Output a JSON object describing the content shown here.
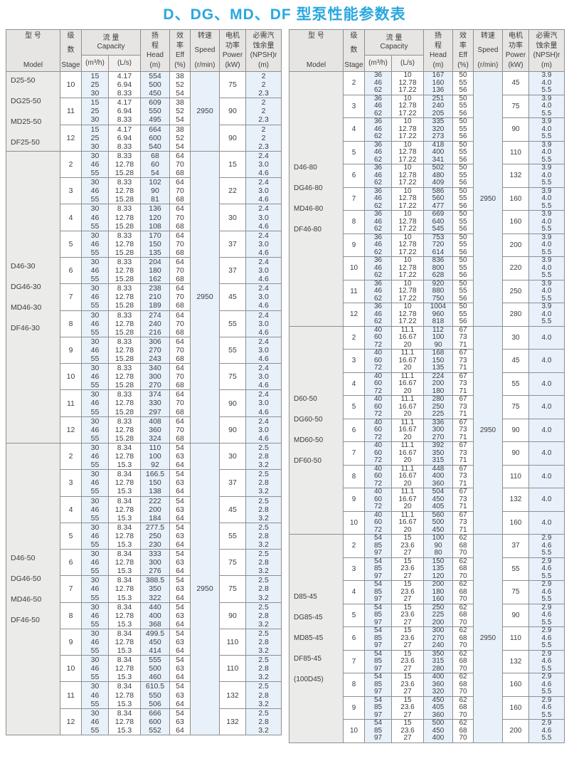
{
  "title": "D、DG、MD、DF 型泵性能参数表",
  "columns": {
    "model": {
      "lines": [
        "型  号",
        "Model"
      ]
    },
    "stage": {
      "lines": [
        "级",
        "数",
        "Stage"
      ]
    },
    "capacity": {
      "lines": [
        "流  量",
        "Capacity"
      ],
      "unit_m3h": "(m³/h)",
      "unit_ls": "(L/s)"
    },
    "head": {
      "lines": [
        "扬",
        "程",
        "Head",
        "(m)"
      ]
    },
    "eff": {
      "lines": [
        "效",
        "率",
        "Eff",
        "(%)"
      ]
    },
    "speed": {
      "lines": [
        "转速",
        "Speed",
        "(r/min)"
      ]
    },
    "power": {
      "lines": [
        "电机",
        "功率",
        "Power",
        "(kW)"
      ]
    },
    "npsh": {
      "lines": [
        "必需汽",
        "蚀余量",
        "(NPSH)r",
        "(m)"
      ]
    }
  },
  "tables": {
    "left": {
      "blocks": [
        {
          "models": [
            "D25-50",
            "DG25-50",
            "MD25-50",
            "DF25-50"
          ],
          "speed": "2950",
          "m3h": [
            "15",
            "25",
            "30"
          ],
          "ls": [
            "4.17",
            "6.94",
            "8.33"
          ],
          "eff": [
            "38",
            "52",
            "54"
          ],
          "npsh": [
            "2",
            "2",
            "2.3"
          ],
          "rows": [
            {
              "stage": "10",
              "head": [
                "554",
                "500",
                "450"
              ],
              "power": "75"
            },
            {
              "stage": "11",
              "head": [
                "609",
                "550",
                "495"
              ],
              "power": "90"
            },
            {
              "stage": "12",
              "head": [
                "664",
                "600",
                "540"
              ],
              "power": "90"
            }
          ]
        },
        {
          "models": [
            "D46-30",
            "DG46-30",
            "MD46-30",
            "DF46-30"
          ],
          "speed": "2950",
          "m3h": [
            "30",
            "46",
            "55"
          ],
          "ls": [
            "8.33",
            "12.78",
            "15.28"
          ],
          "eff": [
            "64",
            "70",
            "68"
          ],
          "npsh": [
            "2.4",
            "3.0",
            "4.6"
          ],
          "rows": [
            {
              "stage": "2",
              "head": [
                "68",
                "60",
                "54"
              ],
              "power": "15"
            },
            {
              "stage": "3",
              "head": [
                "102",
                "90",
                "81"
              ],
              "power": "22"
            },
            {
              "stage": "4",
              "head": [
                "136",
                "120",
                "108"
              ],
              "power": "30"
            },
            {
              "stage": "5",
              "head": [
                "170",
                "150",
                "135"
              ],
              "power": "37"
            },
            {
              "stage": "6",
              "head": [
                "204",
                "180",
                "162"
              ],
              "power": "37"
            },
            {
              "stage": "7",
              "head": [
                "238",
                "210",
                "189"
              ],
              "power": "45"
            },
            {
              "stage": "8",
              "head": [
                "274",
                "240",
                "216"
              ],
              "power": "55"
            },
            {
              "stage": "9",
              "head": [
                "306",
                "270",
                "243"
              ],
              "power": "55"
            },
            {
              "stage": "10",
              "head": [
                "340",
                "300",
                "270"
              ],
              "power": "75"
            },
            {
              "stage": "11",
              "head": [
                "374",
                "330",
                "297"
              ],
              "power": "90"
            },
            {
              "stage": "12",
              "head": [
                "408",
                "360",
                "324"
              ],
              "power": "90"
            }
          ]
        },
        {
          "models": [
            "D46-50",
            "DG46-50",
            "MD46-50",
            "DF46-50"
          ],
          "speed": "2950",
          "m3h": [
            "30",
            "46",
            "55"
          ],
          "ls": [
            "8.34",
            "12.78",
            "15.3"
          ],
          "eff": [
            "54",
            "63",
            "64"
          ],
          "npsh": [
            "2.5",
            "2.8",
            "3.2"
          ],
          "rows": [
            {
              "stage": "2",
              "head": [
                "110",
                "100",
                "92"
              ],
              "power": "30"
            },
            {
              "stage": "3",
              "head": [
                "166.5",
                "150",
                "138"
              ],
              "power": "37"
            },
            {
              "stage": "4",
              "head": [
                "222",
                "200",
                "184"
              ],
              "power": "45"
            },
            {
              "stage": "5",
              "head": [
                "277.5",
                "250",
                "230"
              ],
              "power": "55"
            },
            {
              "stage": "6",
              "head": [
                "333",
                "300",
                "276"
              ],
              "power": "75"
            },
            {
              "stage": "7",
              "head": [
                "388.5",
                "350",
                "322"
              ],
              "power": "75"
            },
            {
              "stage": "8",
              "head": [
                "440",
                "400",
                "368"
              ],
              "power": "90"
            },
            {
              "stage": "9",
              "head": [
                "499.5",
                "450",
                "414"
              ],
              "power": "110"
            },
            {
              "stage": "10",
              "head": [
                "555",
                "500",
                "460"
              ],
              "power": "110"
            },
            {
              "stage": "11",
              "head": [
                "610.5",
                "550",
                "506"
              ],
              "power": "132"
            },
            {
              "stage": "12",
              "head": [
                "666",
                "600",
                "552"
              ],
              "power": "132"
            }
          ]
        }
      ]
    },
    "right": {
      "blocks": [
        {
          "models": [
            "D46-80",
            "DG46-80",
            "MD46-80",
            "DF46-80"
          ],
          "speed": "2950",
          "m3h": [
            "36",
            "46",
            "62"
          ],
          "ls": [
            "10",
            "12.78",
            "17.22"
          ],
          "eff": [
            "50",
            "55",
            "56"
          ],
          "npsh": [
            "3.9",
            "4.0",
            "5.5"
          ],
          "rows": [
            {
              "stage": "2",
              "head": [
                "167",
                "160",
                "136"
              ],
              "power": "45"
            },
            {
              "stage": "3",
              "head": [
                "251",
                "240",
                "205"
              ],
              "power": "75"
            },
            {
              "stage": "4",
              "head": [
                "335",
                "320",
                "273"
              ],
              "power": "90"
            },
            {
              "stage": "5",
              "head": [
                "418",
                "400",
                "341"
              ],
              "power": "110"
            },
            {
              "stage": "6",
              "head": [
                "502",
                "480",
                "409"
              ],
              "power": "132"
            },
            {
              "stage": "7",
              "head": [
                "586",
                "560",
                "477"
              ],
              "power": "160"
            },
            {
              "stage": "8",
              "head": [
                "669",
                "640",
                "545"
              ],
              "power": "160"
            },
            {
              "stage": "9",
              "head": [
                "753",
                "720",
                "614"
              ],
              "power": "200"
            },
            {
              "stage": "10",
              "head": [
                "836",
                "800",
                "628"
              ],
              "power": "220"
            },
            {
              "stage": "11",
              "head": [
                "920",
                "880",
                "750"
              ],
              "power": "250"
            },
            {
              "stage": "12",
              "head": [
                "1004",
                "960",
                "818"
              ],
              "power": "280"
            }
          ]
        },
        {
          "models": [
            "D60-50",
            "DG60-50",
            "MD60-50",
            "DF60-50"
          ],
          "speed": "2950",
          "m3h": [
            "40",
            "60",
            "72"
          ],
          "ls": [
            "11.1",
            "16.67",
            "20"
          ],
          "eff": [
            "67",
            "73",
            "71"
          ],
          "npsh": "4.0",
          "rows": [
            {
              "stage": "2",
              "head": [
                "112",
                "100",
                "90"
              ],
              "power": "30"
            },
            {
              "stage": "3",
              "head": [
                "168",
                "150",
                "135"
              ],
              "power": "45"
            },
            {
              "stage": "4",
              "head": [
                "224",
                "200",
                "180"
              ],
              "power": "55"
            },
            {
              "stage": "5",
              "head": [
                "280",
                "250",
                "225"
              ],
              "power": "75"
            },
            {
              "stage": "6",
              "head": [
                "336",
                "300",
                "270"
              ],
              "power": "90"
            },
            {
              "stage": "7",
              "head": [
                "392",
                "350",
                "315"
              ],
              "power": "90"
            },
            {
              "stage": "8",
              "head": [
                "448",
                "400",
                "360"
              ],
              "power": "110"
            },
            {
              "stage": "9",
              "head": [
                "504",
                "450",
                "405"
              ],
              "power": "132"
            },
            {
              "stage": "10",
              "head": [
                "560",
                "500",
                "450"
              ],
              "power": "160"
            }
          ]
        },
        {
          "models": [
            "D85-45",
            "DG85-45",
            "MD85-45",
            "DF85-45",
            "(100D45)"
          ],
          "speed": "2950",
          "m3h": [
            "54",
            "85",
            "97"
          ],
          "ls": [
            "15",
            "23.6",
            "27"
          ],
          "eff": [
            "62",
            "68",
            "70"
          ],
          "npsh": [
            "2.9",
            "4.6",
            "5.5"
          ],
          "rows": [
            {
              "stage": "2",
              "head": [
                "100",
                "90",
                "80"
              ],
              "power": "37"
            },
            {
              "stage": "3",
              "head": [
                "150",
                "135",
                "120"
              ],
              "power": "55"
            },
            {
              "stage": "4",
              "head": [
                "200",
                "180",
                "160"
              ],
              "power": "75"
            },
            {
              "stage": "5",
              "head": [
                "250",
                "225",
                "200"
              ],
              "power": "90"
            },
            {
              "stage": "6",
              "head": [
                "300",
                "270",
                "240"
              ],
              "power": "110"
            },
            {
              "stage": "7",
              "head": [
                "350",
                "315",
                "280"
              ],
              "power": "132"
            },
            {
              "stage": "8",
              "head": [
                "400",
                "360",
                "320"
              ],
              "power": "160"
            },
            {
              "stage": "9",
              "head": [
                "450",
                "405",
                "360"
              ],
              "power": "160"
            },
            {
              "stage": "10",
              "head": [
                "500",
                "450",
                "400"
              ],
              "power": "200"
            }
          ]
        }
      ]
    }
  }
}
